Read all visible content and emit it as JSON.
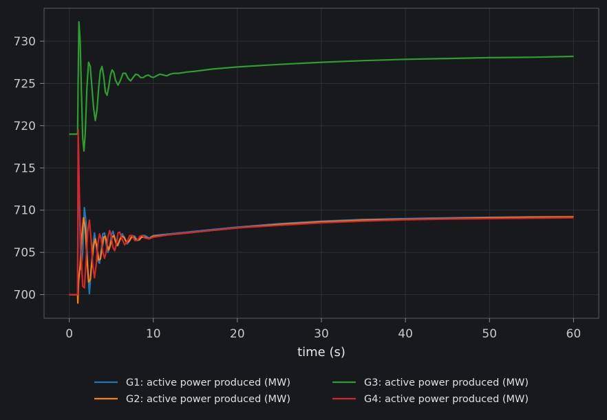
{
  "chart_data": {
    "type": "line",
    "title": "",
    "xlabel": "time (s)",
    "ylabel": "",
    "xlim": [
      -3,
      63
    ],
    "ylim": [
      697.2,
      733.9
    ],
    "xticks": [
      0,
      10,
      20,
      30,
      40,
      50,
      60
    ],
    "yticks": [
      700,
      705,
      710,
      715,
      720,
      725,
      730
    ],
    "grid": true,
    "legend_position": "bottom-center",
    "series": [
      {
        "name": "G1: active power produced (MW)",
        "color": "#1f77b4",
        "x": [
          0,
          1.0,
          1.05,
          1.2,
          1.4,
          1.6,
          1.8,
          2.0,
          2.2,
          2.4,
          2.6,
          2.8,
          3.0,
          3.2,
          3.4,
          3.6,
          3.8,
          4.0,
          4.2,
          4.4,
          4.6,
          4.8,
          5.0,
          5.2,
          5.4,
          5.6,
          5.8,
          6.0,
          6.3,
          6.6,
          6.9,
          7.2,
          7.5,
          7.8,
          8.1,
          8.4,
          8.7,
          9.0,
          9.5,
          10,
          11,
          12,
          13,
          14,
          15,
          17,
          20,
          25,
          30,
          35,
          40,
          45,
          50,
          55,
          60
        ],
        "y": [
          700.0,
          700.0,
          715.0,
          711.0,
          703.0,
          705.0,
          710.3,
          708.5,
          703.0,
          700.1,
          703.0,
          705.5,
          707.3,
          706.0,
          704.0,
          703.7,
          705.2,
          707.2,
          707.3,
          705.9,
          705.0,
          705.6,
          707.0,
          707.5,
          706.8,
          705.9,
          705.8,
          706.5,
          707.2,
          706.7,
          706.0,
          706.4,
          707.0,
          706.9,
          706.4,
          706.5,
          707.0,
          707.0,
          706.7,
          707.0,
          707.1,
          707.2,
          707.3,
          707.4,
          707.5,
          707.7,
          708.0,
          708.4,
          708.7,
          708.9,
          709.0,
          709.1,
          709.15,
          709.2,
          709.2
        ]
      },
      {
        "name": "G2: active power produced (MW)",
        "color": "#ff7f0e",
        "x": [
          0,
          1.0,
          1.02,
          1.1,
          1.3,
          1.5,
          1.7,
          1.9,
          2.1,
          2.3,
          2.5,
          2.7,
          2.9,
          3.1,
          3.3,
          3.5,
          3.7,
          3.9,
          4.1,
          4.3,
          4.5,
          4.7,
          4.9,
          5.1,
          5.3,
          5.5,
          5.7,
          5.9,
          6.2,
          6.5,
          6.8,
          7.1,
          7.4,
          7.7,
          8.0,
          8.3,
          8.6,
          9.0,
          9.5,
          10,
          11,
          12,
          13,
          14,
          15,
          17,
          20,
          25,
          30,
          35,
          40,
          45,
          50,
          55,
          60
        ],
        "y": [
          700.0,
          700.0,
          699.0,
          701.5,
          703.5,
          707.0,
          709.1,
          708.0,
          704.5,
          701.5,
          701.8,
          704.0,
          705.8,
          706.6,
          705.5,
          704.1,
          704.2,
          705.5,
          706.8,
          706.9,
          705.9,
          705.3,
          705.9,
          706.8,
          707.0,
          706.3,
          705.8,
          706.2,
          706.9,
          706.8,
          706.2,
          706.3,
          706.8,
          706.8,
          706.4,
          706.5,
          706.8,
          706.8,
          706.6,
          706.9,
          707.0,
          707.1,
          707.2,
          707.3,
          707.4,
          707.6,
          707.9,
          708.3,
          708.6,
          708.8,
          708.9,
          709.0,
          709.1,
          709.15,
          709.2
        ]
      },
      {
        "name": "G3: active power produced (MW)",
        "color": "#2ca02c",
        "x": [
          0,
          1.0,
          1.05,
          1.15,
          1.3,
          1.45,
          1.6,
          1.75,
          1.9,
          2.1,
          2.3,
          2.5,
          2.7,
          2.9,
          3.1,
          3.3,
          3.5,
          3.7,
          3.9,
          4.1,
          4.3,
          4.5,
          4.7,
          4.9,
          5.1,
          5.3,
          5.5,
          5.8,
          6.1,
          6.4,
          6.7,
          7.0,
          7.3,
          7.6,
          7.9,
          8.2,
          8.5,
          8.8,
          9.1,
          9.4,
          9.7,
          10.0,
          10.4,
          10.8,
          11.2,
          11.6,
          12.0,
          12.5,
          13.0,
          14,
          15,
          17,
          20,
          25,
          30,
          35,
          40,
          45,
          50,
          55,
          60
        ],
        "y": [
          719.0,
          719.0,
          725.0,
          732.3,
          730.0,
          724.0,
          718.5,
          717.0,
          719.0,
          724.5,
          727.5,
          727.0,
          724.5,
          722.0,
          720.6,
          721.8,
          724.5,
          726.5,
          727.0,
          725.8,
          724.0,
          723.6,
          724.6,
          726.0,
          726.6,
          726.3,
          725.4,
          724.8,
          725.4,
          726.2,
          726.2,
          725.6,
          725.3,
          725.7,
          726.1,
          726.0,
          725.7,
          725.7,
          725.9,
          726.0,
          725.8,
          725.7,
          725.9,
          726.1,
          726.0,
          725.9,
          726.1,
          726.2,
          726.2,
          726.35,
          726.45,
          726.7,
          726.95,
          727.25,
          727.5,
          727.7,
          727.85,
          727.95,
          728.05,
          728.1,
          728.2
        ]
      },
      {
        "name": "G4: active power produced (MW)",
        "color": "#d62728",
        "x": [
          0,
          1.0,
          1.02,
          1.06,
          1.2,
          1.4,
          1.6,
          1.8,
          2.0,
          2.2,
          2.4,
          2.6,
          2.8,
          3.0,
          3.2,
          3.4,
          3.6,
          3.8,
          4.0,
          4.2,
          4.4,
          4.6,
          4.8,
          5.0,
          5.2,
          5.4,
          5.6,
          5.8,
          6.0,
          6.3,
          6.6,
          6.9,
          7.2,
          7.5,
          7.8,
          8.1,
          8.4,
          8.7,
          9.0,
          9.5,
          10,
          11,
          12,
          13,
          14,
          15,
          17,
          20,
          25,
          30,
          35,
          40,
          45,
          50,
          55,
          60
        ],
        "y": [
          700.0,
          700.0,
          708.0,
          719.5,
          712.0,
          705.0,
          701.0,
          700.8,
          704.0,
          707.5,
          708.8,
          706.5,
          703.5,
          702.0,
          703.5,
          706.0,
          707.2,
          706.6,
          705.0,
          704.3,
          705.1,
          706.8,
          707.6,
          706.9,
          705.6,
          705.2,
          706.0,
          707.3,
          707.4,
          706.5,
          705.9,
          706.3,
          707.0,
          707.0,
          706.4,
          706.4,
          706.9,
          707.0,
          706.7,
          706.6,
          706.8,
          706.95,
          707.1,
          707.2,
          707.3,
          707.4,
          707.6,
          707.9,
          708.2,
          708.5,
          708.7,
          708.85,
          708.95,
          709.0,
          709.05,
          709.1
        ]
      }
    ]
  }
}
